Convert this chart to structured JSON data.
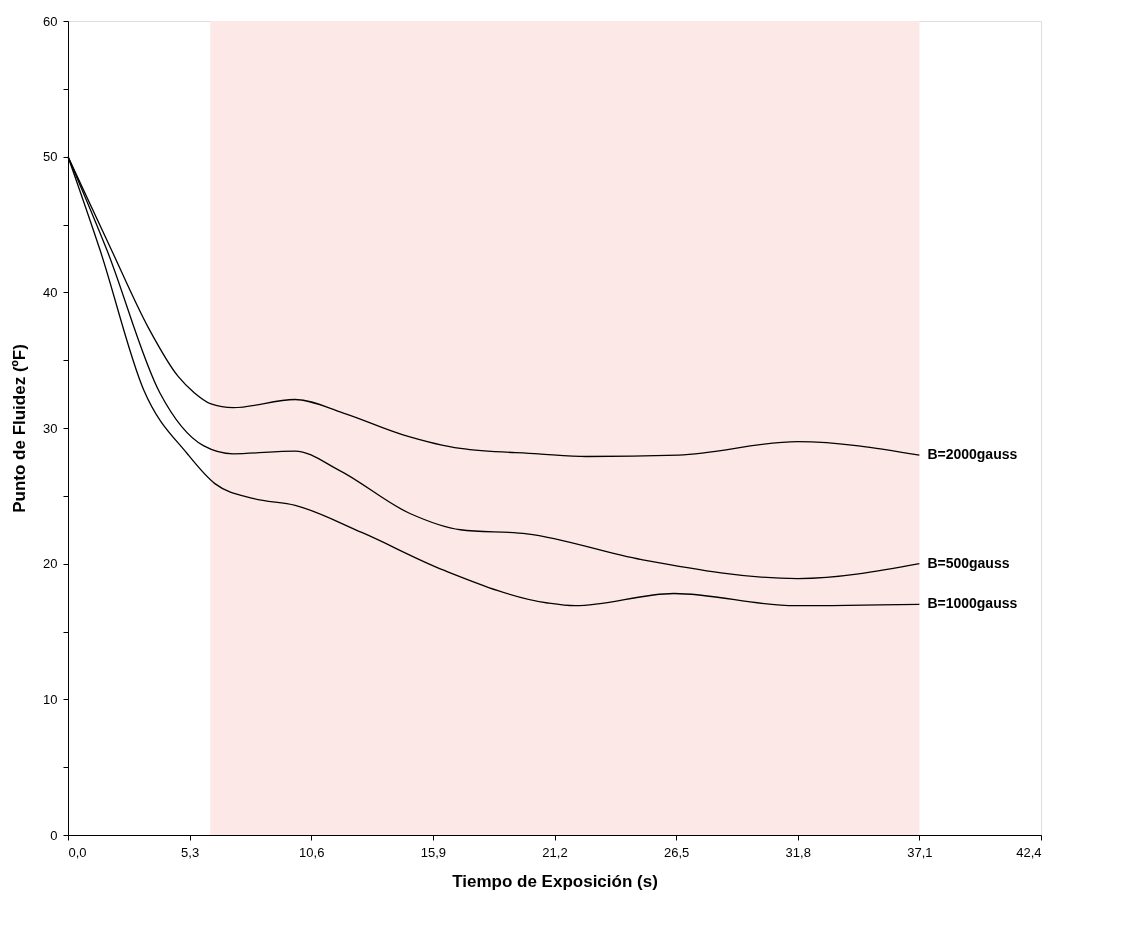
{
  "chart_data": {
    "type": "line",
    "xlabel": "Tiempo de Exposición (s)",
    "ylabel": "Punto de Fluidez (ºF)",
    "xlim": [
      0,
      42.4
    ],
    "ylim": [
      0,
      60
    ],
    "xticks": [
      {
        "value": 0,
        "label": "0,0"
      },
      {
        "value": 5.3,
        "label": "5,3"
      },
      {
        "value": 10.6,
        "label": "10,6"
      },
      {
        "value": 15.9,
        "label": "15,9"
      },
      {
        "value": 21.2,
        "label": "21,2"
      },
      {
        "value": 26.5,
        "label": "26,5"
      },
      {
        "value": 31.8,
        "label": "31,8"
      },
      {
        "value": 37.1,
        "label": "37,1"
      },
      {
        "value": 42.4,
        "label": "42,4"
      }
    ],
    "yticks": [
      0,
      {
        "value": 5,
        "label": null
      },
      10,
      {
        "value": 15,
        "label": null
      },
      20,
      {
        "value": 25,
        "label": null
      },
      30,
      {
        "value": 35,
        "label": null
      },
      40,
      {
        "value": 45,
        "label": null
      },
      50,
      {
        "value": 55,
        "label": null
      },
      60
    ],
    "grid": false,
    "marker": "none",
    "line_style": "solid",
    "bands": [
      {
        "axis": "x",
        "from": 6.2,
        "to": 37.1,
        "color": "#fde8e8"
      }
    ],
    "series": [
      {
        "name": "B=2000gauss",
        "color": "#000000",
        "x": [
          0,
          1.9,
          3.5,
          4.8,
          5.5,
          6.2,
          7.2,
          9.9,
          12.0,
          14.6,
          17.1,
          20.5,
          22.6,
          26.6,
          31.8,
          37.1
        ],
        "values": [
          50,
          43.1,
          37.4,
          33.8,
          32.6,
          31.8,
          31.5,
          32.1,
          31.1,
          29.5,
          28.5,
          28.1,
          27.9,
          28.0,
          29.0,
          28.0
        ]
      },
      {
        "name": "B=500gauss",
        "color": "#000000",
        "x": [
          0,
          1.7,
          4.0,
          5.9,
          7.2,
          9.9,
          11.8,
          14.9,
          17.1,
          20.0,
          25.0,
          31.8,
          37.1
        ],
        "values": [
          50,
          43.1,
          32.6,
          28.7,
          28.1,
          28.3,
          26.9,
          23.7,
          22.5,
          22.2,
          20.3,
          18.9,
          20.0
        ]
      },
      {
        "name": "B=1000gauss",
        "color": "#000000",
        "x": [
          0,
          1.4,
          3.3,
          5.2,
          6.4,
          8.1,
          9.9,
          12.8,
          16.4,
          20.9,
          22.1,
          26.4,
          31.7,
          37.1
        ],
        "values": [
          50,
          43.1,
          32.8,
          28.1,
          25.9,
          24.8,
          24.3,
          22.3,
          19.5,
          17.1,
          16.9,
          17.8,
          16.9,
          17.0
        ]
      }
    ]
  }
}
